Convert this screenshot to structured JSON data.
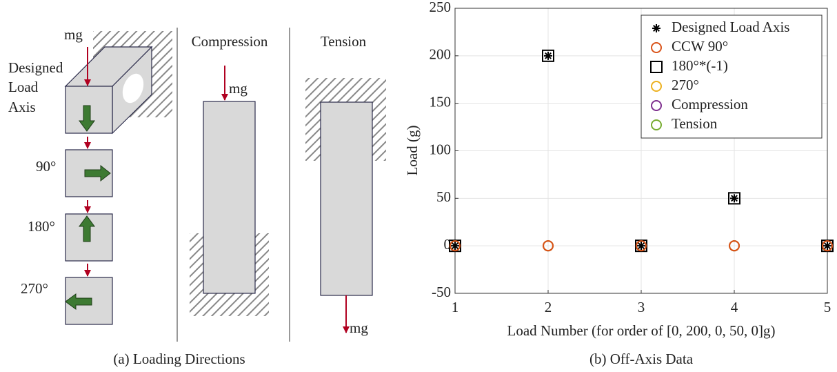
{
  "diagram": {
    "caption": "(a) Loading Directions",
    "force_label": "mg",
    "axis_label": [
      "Designed",
      "Load",
      "Axis"
    ],
    "angles": [
      "90°",
      "180°",
      "270°"
    ],
    "compression": "Compression",
    "tension": "Tension"
  },
  "chart_data": {
    "type": "scatter",
    "caption": "(b) Off-Axis Data",
    "xlabel": "Load Number (for order of [0, 200, 0, 50, 0]g)",
    "ylabel": "Load (g)",
    "x": [
      1,
      2,
      3,
      4,
      5
    ],
    "series": [
      {
        "name": "Designed Load Axis",
        "color": "#000000",
        "marker": "asterisk",
        "values": [
          0,
          200,
          0,
          50,
          0
        ]
      },
      {
        "name": "CCW 90°",
        "color": "#d95319",
        "marker": "circle",
        "values": [
          0,
          0,
          0,
          0,
          0
        ]
      },
      {
        "name": "180°*(-1)",
        "color": "#000000",
        "marker": "square",
        "values": [
          0,
          200,
          0,
          50,
          0
        ]
      },
      {
        "name": "270°",
        "color": "#edb120",
        "marker": "circle",
        "values": [
          0,
          0,
          0,
          0,
          0
        ]
      },
      {
        "name": "Compression",
        "color": "#7e2f8e",
        "marker": "circle",
        "values": [
          0,
          0,
          0,
          0,
          0
        ]
      },
      {
        "name": "Tension",
        "color": "#77ac30",
        "marker": "circle",
        "values": [
          0,
          0,
          0,
          0,
          0
        ]
      }
    ],
    "xlim": [
      1,
      5
    ],
    "xticks": [
      1,
      2,
      3,
      4,
      5
    ],
    "ylim": [
      -50,
      250
    ],
    "yticks": [
      -50,
      0,
      50,
      100,
      150,
      200,
      250
    ],
    "grid": true,
    "legend": "upper-right"
  }
}
